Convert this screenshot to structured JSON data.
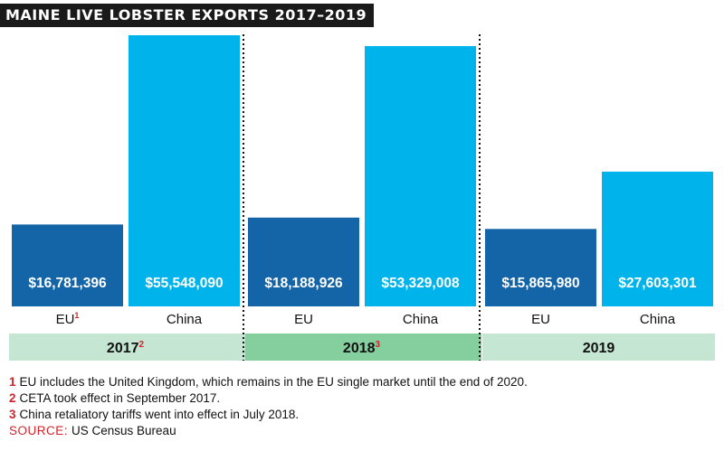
{
  "title": "MAINE LIVE LOBSTER EXPORTS 2017–2019",
  "colors": {
    "eu_bar": "#1464a8",
    "china_bar": "#00b3ea",
    "year_band_light": "#c4e6d3",
    "year_band_dark": "#85cf9f",
    "footnote_red": "#d2232a",
    "title_bg": "#1a1a1a"
  },
  "chart_data": {
    "type": "bar",
    "groups": [
      {
        "year": "2017",
        "year_note": "2",
        "bars": [
          {
            "category": "EU",
            "note": "1",
            "value": 16781396,
            "label": "$16,781,396"
          },
          {
            "category": "China",
            "note": "",
            "value": 55548090,
            "label": "$55,548,090"
          }
        ]
      },
      {
        "year": "2018",
        "year_note": "3",
        "bars": [
          {
            "category": "EU",
            "note": "",
            "value": 18188926,
            "label": "$18,188,926"
          },
          {
            "category": "China",
            "note": "",
            "value": 53329008,
            "label": "$53,329,008"
          }
        ]
      },
      {
        "year": "2019",
        "year_note": "",
        "bars": [
          {
            "category": "EU",
            "note": "",
            "value": 15865980,
            "label": "$15,865,980"
          },
          {
            "category": "China",
            "note": "",
            "value": 27603301,
            "label": "$27,603,301"
          }
        ]
      }
    ],
    "grid": false,
    "legend": "none"
  },
  "footnotes": [
    {
      "num": "1",
      "text": "EU includes the United Kingdom, which remains in the EU single market until the end of 2020."
    },
    {
      "num": "2",
      "text": "CETA took effect in September 2017."
    },
    {
      "num": "3",
      "text": "China retaliatory tariffs went into effect in July 2018."
    }
  ],
  "source": {
    "label": "SOURCE:",
    "text": "US Census Bureau"
  }
}
